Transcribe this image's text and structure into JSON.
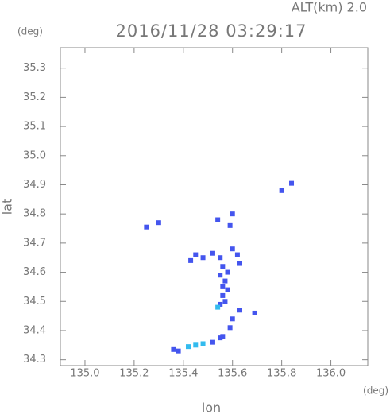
{
  "chart_data": {
    "type": "scatter",
    "title": "2016/11/28 03:29:17",
    "subtitle": "ALT(km) 2.0",
    "y_unit": "(deg)",
    "x_unit": "(deg)",
    "xlabel": "lon",
    "ylabel": "lat",
    "xlim": [
      134.9,
      136.15
    ],
    "ylim": [
      34.28,
      35.37
    ],
    "xticks": [
      {
        "value": 135,
        "label": "135.0"
      },
      135.2,
      135.4,
      135.6,
      135.8,
      {
        "value": 136,
        "label": "136.0"
      }
    ],
    "yticks": [
      34.3,
      34.4,
      34.5,
      34.6,
      34.7,
      34.8,
      34.9,
      {
        "value": 35,
        "label": "35.0"
      },
      35.1,
      35.2,
      35.3
    ],
    "series": [
      {
        "color": "#4455ee",
        "x": [
          135.25,
          135.3,
          135.8,
          135.84,
          135.6,
          135.59,
          135.54,
          135.45,
          135.43,
          135.48,
          135.52,
          135.55,
          135.56,
          135.6,
          135.62,
          135.63,
          135.58,
          135.55,
          135.57,
          135.56,
          135.58,
          135.56,
          135.57,
          135.55,
          135.63,
          135.69,
          135.6,
          135.59,
          135.56,
          135.55,
          135.38,
          135.36,
          135.52
        ],
        "values": [
          34.755,
          34.77,
          34.88,
          34.905,
          34.8,
          34.76,
          34.78,
          34.66,
          34.64,
          34.65,
          34.665,
          34.65,
          34.62,
          34.68,
          34.66,
          34.63,
          34.6,
          34.59,
          34.57,
          34.55,
          34.54,
          34.52,
          34.5,
          34.49,
          34.47,
          34.46,
          34.44,
          34.41,
          34.38,
          34.375,
          34.33,
          34.335,
          34.36
        ]
      },
      {
        "color": "#33bbee",
        "x": [
          135.54,
          135.42,
          135.45,
          135.48
        ],
        "values": [
          34.48,
          34.345,
          34.35,
          34.355
        ]
      }
    ]
  }
}
